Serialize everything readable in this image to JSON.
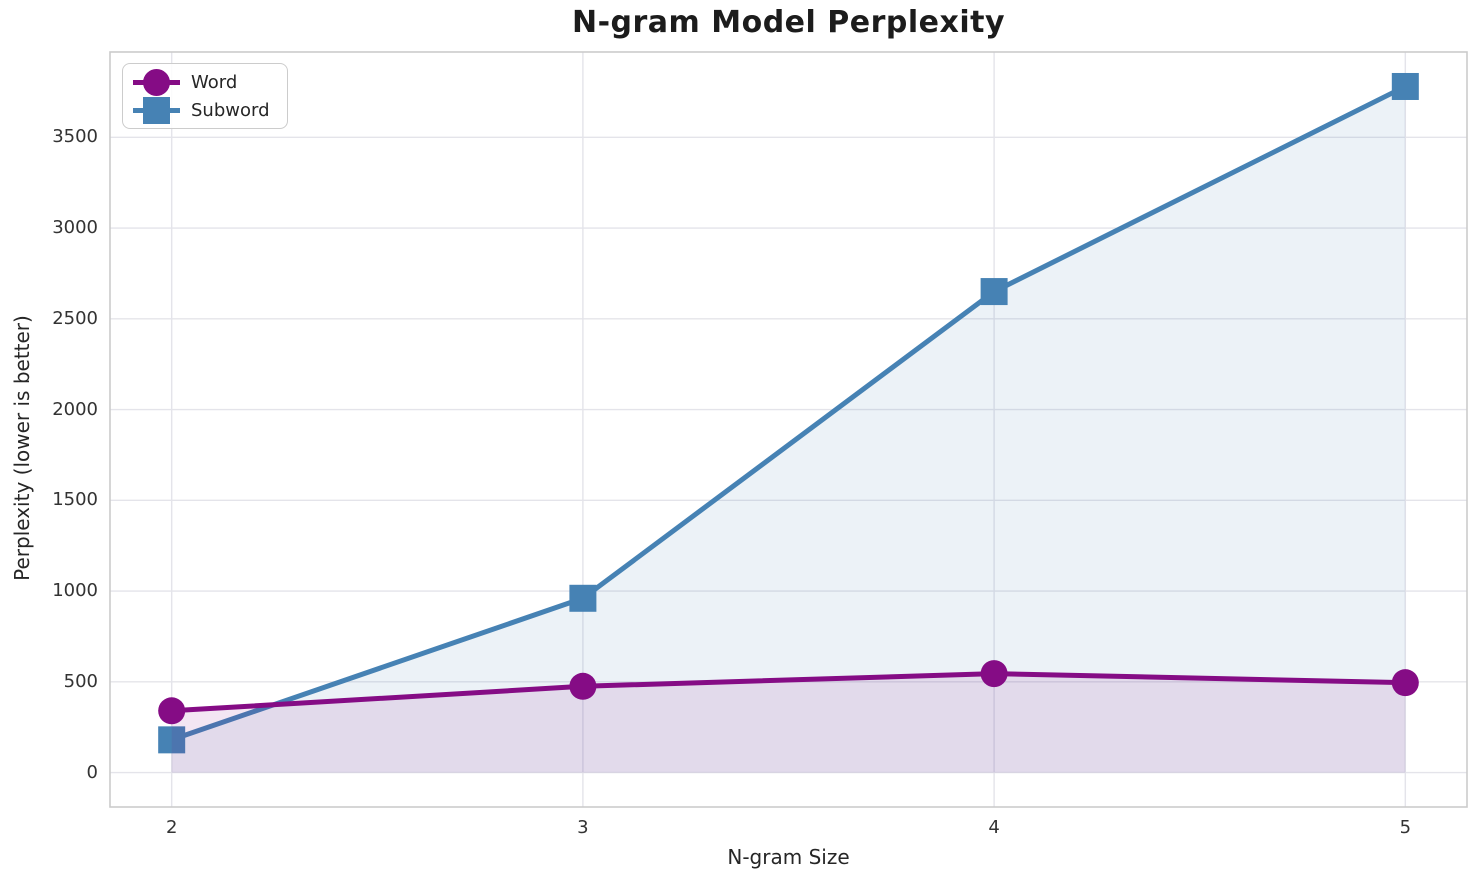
{
  "title": "N-gram Model Perplexity",
  "colors": {
    "word_series": "#850C85",
    "subword_series": "#4682B4",
    "grid": "#e4e4ea",
    "spine": "#cbcbcb",
    "tick_text": "#333333",
    "title_text": "#1c1c1c"
  },
  "chart_data": {
    "type": "line",
    "title": "N-gram Model Perplexity",
    "xlabel": "N-gram Size",
    "ylabel": "Perplexity (lower is better)",
    "x": [
      2,
      3,
      4,
      5
    ],
    "series": [
      {
        "name": "Subword",
        "values": [
          180,
          960,
          2650,
          3780
        ],
        "color": "#4682B4",
        "marker": "square",
        "fill_to_baseline": true
      },
      {
        "name": "Word",
        "values": [
          340,
          475,
          545,
          495
        ],
        "color": "#850C85",
        "marker": "circle",
        "fill_to_baseline": true
      }
    ],
    "fill_baseline": 0,
    "fill_alpha": 0.1,
    "x_ticks": [
      2,
      3,
      4,
      5
    ],
    "y_ticks": [
      0,
      500,
      1000,
      1500,
      2000,
      2500,
      3000,
      3500
    ],
    "xlim": [
      1.85,
      5.15
    ],
    "ylim": [
      -190,
      3970
    ],
    "grid": true,
    "legend_position": "upper left",
    "legend_items": [
      {
        "label": "Word"
      },
      {
        "label": "Subword"
      }
    ]
  }
}
